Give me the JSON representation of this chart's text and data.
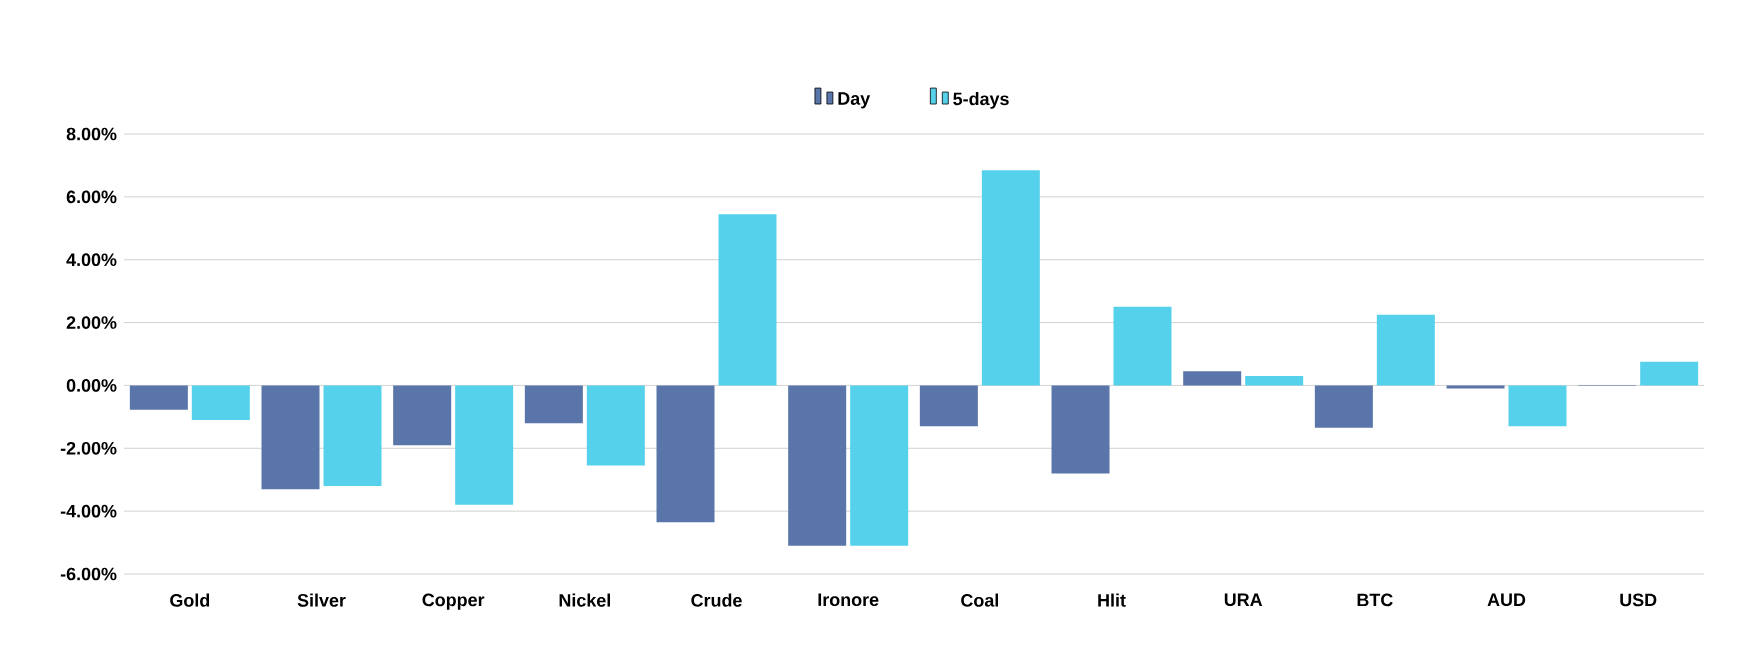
{
  "chart_data": {
    "type": "bar",
    "categories": [
      "Gold",
      "Silver",
      "Copper",
      "Nickel",
      "Crude",
      "Ironore",
      "Coal",
      "Hlit",
      "URA",
      "BTC",
      "AUD",
      "USD"
    ],
    "series": [
      {
        "name": "Day",
        "color": "#5a75a9",
        "values": [
          -0.77,
          -3.3,
          -1.9,
          -1.2,
          -4.35,
          -5.1,
          -1.3,
          -2.8,
          0.45,
          -1.35,
          -0.1,
          -0.02
        ]
      },
      {
        "name": "5-days",
        "color": "#56d1eb",
        "values": [
          -1.1,
          -3.2,
          -3.8,
          -2.55,
          5.45,
          -5.1,
          6.85,
          2.5,
          0.3,
          2.25,
          -1.3,
          0.75
        ]
      }
    ],
    "ylim": [
      -6.0,
      8.0
    ],
    "yticks": [
      {
        "value": -6,
        "label": "-6.00%"
      },
      {
        "value": -4,
        "label": "-4.00%"
      },
      {
        "value": -2,
        "label": "-2.00%"
      },
      {
        "value": 0,
        "label": "0.00%"
      },
      {
        "value": 2,
        "label": "2.00%"
      },
      {
        "value": 4,
        "label": "4.00%"
      },
      {
        "value": 6,
        "label": "6.00%"
      },
      {
        "value": 8,
        "label": "8.00%"
      }
    ],
    "grid": "y",
    "legend": "top"
  }
}
